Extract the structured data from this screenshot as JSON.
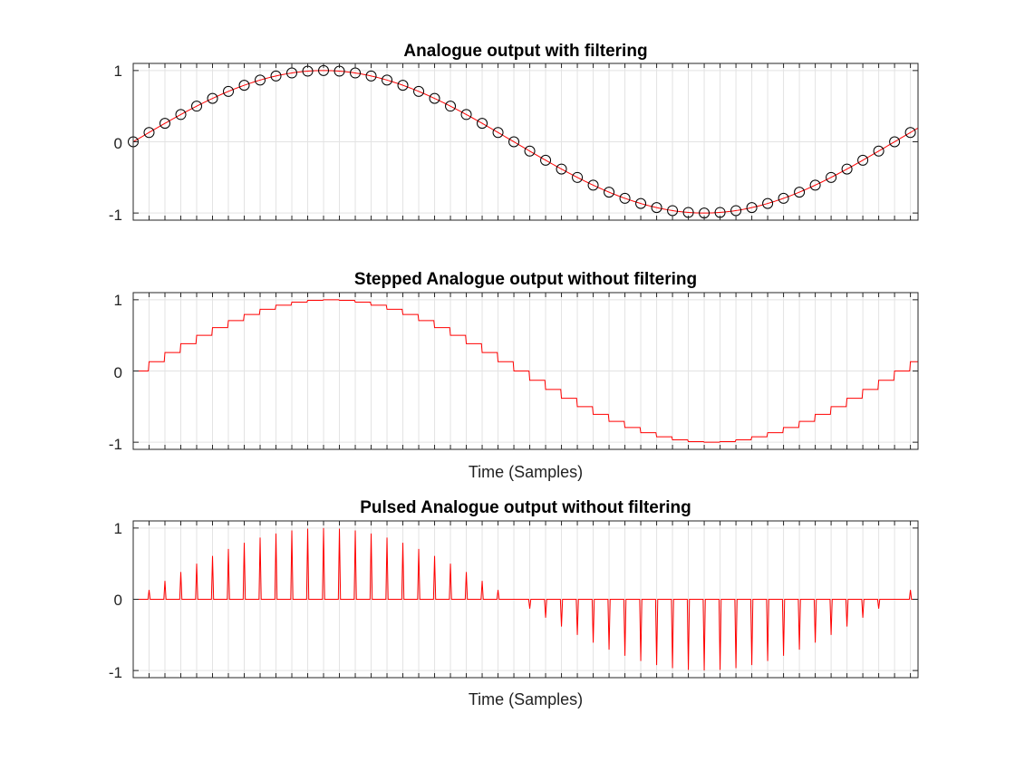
{
  "chart_data": [
    {
      "type": "line",
      "title": "Analogue output with filtering",
      "xlabel": "",
      "ylabel": "",
      "style": "filtered",
      "ylim": [
        -1.1,
        1.1
      ],
      "yticks": [
        -1,
        0,
        1
      ],
      "ytick_labels": [
        "-1",
        "0",
        "1"
      ],
      "samples_per_cycle": 48,
      "sample_count": 50,
      "grid": true,
      "series": [
        {
          "values": [
            0,
            0.1305,
            0.2588,
            0.3827,
            0.5,
            0.6088,
            0.7071,
            0.7934,
            0.866,
            0.9239,
            0.9659,
            0.9914,
            1,
            0.9914,
            0.9659,
            0.9239,
            0.866,
            0.7934,
            0.7071,
            0.6088,
            0.5,
            0.3827,
            0.2588,
            0.1305,
            0,
            -0.1305,
            -0.2588,
            -0.3827,
            -0.5,
            -0.6088,
            -0.7071,
            -0.7934,
            -0.866,
            -0.9239,
            -0.9659,
            -0.9914,
            -1,
            -0.9914,
            -0.9659,
            -0.9239,
            -0.866,
            -0.7934,
            -0.7071,
            -0.6088,
            -0.5,
            -0.3827,
            -0.2588,
            -0.1305,
            0,
            0.1305
          ],
          "color": "#000000",
          "marker": "circle"
        },
        {
          "curve": "sine",
          "color": "#ff0000"
        }
      ]
    },
    {
      "type": "line",
      "title": "Stepped Analogue output without filtering",
      "xlabel": "Time (Samples)",
      "ylabel": "",
      "style": "stepped",
      "ylim": [
        -1.1,
        1.1
      ],
      "yticks": [
        -1,
        0,
        1
      ],
      "ytick_labels": [
        "-1",
        "0",
        "1"
      ],
      "samples_per_cycle": 48,
      "sample_count": 50,
      "grid": true,
      "series": [
        {
          "values": [
            0,
            0.1305,
            0.2588,
            0.3827,
            0.5,
            0.6088,
            0.7071,
            0.7934,
            0.866,
            0.9239,
            0.9659,
            0.9914,
            1,
            0.9914,
            0.9659,
            0.9239,
            0.866,
            0.7934,
            0.7071,
            0.6088,
            0.5,
            0.3827,
            0.2588,
            0.1305,
            0,
            -0.1305,
            -0.2588,
            -0.3827,
            -0.5,
            -0.6088,
            -0.7071,
            -0.7934,
            -0.866,
            -0.9239,
            -0.9659,
            -0.9914,
            -1,
            -0.9914,
            -0.9659,
            -0.9239,
            -0.866,
            -0.7934,
            -0.7071,
            -0.6088,
            -0.5,
            -0.3827,
            -0.2588,
            -0.1305,
            0,
            0.1305
          ],
          "color": "#ff0000"
        }
      ]
    },
    {
      "type": "line",
      "title": "Pulsed Analogue output without filtering",
      "xlabel": "Time (Samples)",
      "ylabel": "",
      "style": "pulsed",
      "ylim": [
        -1.1,
        1.1
      ],
      "yticks": [
        -1,
        0,
        1
      ],
      "ytick_labels": [
        "-1",
        "0",
        "1"
      ],
      "samples_per_cycle": 48,
      "sample_count": 50,
      "grid": true,
      "series": [
        {
          "values": [
            0,
            0.1305,
            0.2588,
            0.3827,
            0.5,
            0.6088,
            0.7071,
            0.7934,
            0.866,
            0.9239,
            0.9659,
            0.9914,
            1,
            0.9914,
            0.9659,
            0.9239,
            0.866,
            0.7934,
            0.7071,
            0.6088,
            0.5,
            0.3827,
            0.2588,
            0.1305,
            0,
            -0.1305,
            -0.2588,
            -0.3827,
            -0.5,
            -0.6088,
            -0.7071,
            -0.7934,
            -0.866,
            -0.9239,
            -0.9659,
            -0.9914,
            -1,
            -0.9914,
            -0.9659,
            -0.9239,
            -0.866,
            -0.7934,
            -0.7071,
            -0.6088,
            -0.5,
            -0.3827,
            -0.2588,
            -0.1305,
            0,
            0.1305
          ],
          "color": "#ff0000"
        }
      ]
    }
  ]
}
